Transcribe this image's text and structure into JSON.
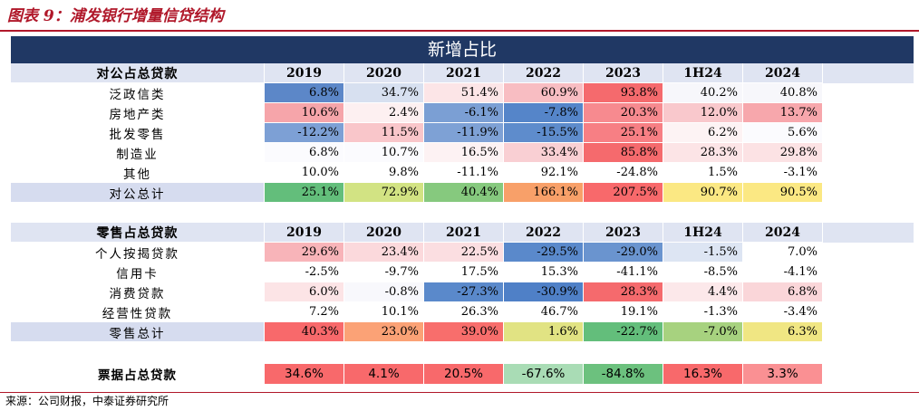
{
  "title": "图表 9：浦发银行增量信贷结构",
  "banner": "新增占比",
  "years": [
    "2019",
    "2020",
    "2021",
    "2022",
    "2023",
    "1H24",
    "2024"
  ],
  "corporate": {
    "header": "对公占总贷款",
    "rows": [
      {
        "label": "泛政信类",
        "values": [
          "6.8%",
          "34.7%",
          "51.4%",
          "60.9%",
          "93.8%",
          "40.2%",
          "40.8%"
        ],
        "colors": [
          "#5c87c8",
          "#d7e0f0",
          "#fce5e7",
          "#f8bdc2",
          "#f56a6d",
          "#f7f7fb",
          "#f7f7fb"
        ]
      },
      {
        "label": "房地产类",
        "values": [
          "10.6%",
          "2.4%",
          "-6.1%",
          "-7.8%",
          "20.3%",
          "12.0%",
          "13.7%"
        ],
        "colors": [
          "#f6a5aa",
          "#fdf0f1",
          "#7b9fd4",
          "#5585c9",
          "#f78a8f",
          "#f9c8cc",
          "#f7a7ac"
        ]
      },
      {
        "label": "批发零售",
        "values": [
          "-12.2%",
          "11.5%",
          "-11.9%",
          "-15.5%",
          "25.1%",
          "6.2%",
          "5.6%"
        ],
        "colors": [
          "#7da0d5",
          "#f9c6ca",
          "#7ea1d5",
          "#5e8ccc",
          "#f77f84",
          "#fdf3f4",
          "#fbfbfe"
        ]
      },
      {
        "label": "制造业",
        "values": [
          "6.8%",
          "10.7%",
          "16.5%",
          "33.4%",
          "85.8%",
          "28.3%",
          "29.8%"
        ],
        "colors": [
          "#fbfbfe",
          "#fbfbfe",
          "#fdf2f3",
          "#f9cfd3",
          "#f56a6d",
          "#fce4e6",
          "#fce2e4"
        ]
      },
      {
        "label": "其他",
        "values": [
          "10.0%",
          "9.8%",
          "-11.1%",
          "92.1%",
          "-24.8%",
          "1.5%",
          "-3.1%"
        ],
        "colors": [
          "#ffffff",
          "#ffffff",
          "#ffffff",
          "#ffffff",
          "#ffffff",
          "#ffffff",
          "#ffffff"
        ]
      }
    ],
    "total": {
      "label": "对公总计",
      "values": [
        "25.1%",
        "72.9%",
        "40.4%",
        "166.1%",
        "207.5%",
        "90.7%",
        "90.5%"
      ],
      "colors": [
        "#63be7b",
        "#d2e383",
        "#86c97e",
        "#f8a069",
        "#f8696b",
        "#fbe883",
        "#fbe883"
      ]
    }
  },
  "retail": {
    "header": "零售占总贷款",
    "rows": [
      {
        "label": "个人按揭贷款",
        "values": [
          "29.6%",
          "23.4%",
          "22.5%",
          "-29.5%",
          "-29.0%",
          "-1.5%",
          "7.0%"
        ],
        "colors": [
          "#f8b4b9",
          "#fbd9dc",
          "#fbdee1",
          "#5a89cb",
          "#6a94cf",
          "#dde5f3",
          "#ffffff"
        ]
      },
      {
        "label": "信用卡",
        "values": [
          "-2.5%",
          "-9.7%",
          "17.5%",
          "15.3%",
          "-41.1%",
          "-8.5%",
          "-4.1%"
        ],
        "colors": [
          "#ffffff",
          "#ffffff",
          "#ffffff",
          "#ffffff",
          "#ffffff",
          "#ffffff",
          "#ffffff"
        ]
      },
      {
        "label": "消费贷款",
        "values": [
          "6.0%",
          "-0.8%",
          "-27.3%",
          "-30.9%",
          "28.3%",
          "4.4%",
          "6.8%"
        ],
        "colors": [
          "#fce4e6",
          "#f8f8fc",
          "#5a89cb",
          "#4f80c7",
          "#f56a6d",
          "#fce8ea",
          "#fad6d9"
        ]
      },
      {
        "label": "经营性贷款",
        "values": [
          "7.2%",
          "10.1%",
          "26.3%",
          "46.7%",
          "19.1%",
          "-1.3%",
          "-3.4%"
        ],
        "colors": [
          "#ffffff",
          "#ffffff",
          "#ffffff",
          "#ffffff",
          "#ffffff",
          "#ffffff",
          "#ffffff"
        ]
      }
    ],
    "total": {
      "label": "零售总计",
      "values": [
        "40.3%",
        "23.0%",
        "39.0%",
        "1.6%",
        "-22.7%",
        "-7.0%",
        "6.3%"
      ],
      "colors": [
        "#f8696b",
        "#fba276",
        "#f86e6c",
        "#e1e383",
        "#63be7b",
        "#a7d27f",
        "#f0e683"
      ]
    }
  },
  "bill": {
    "label": "票据占总贷款",
    "values": [
      "34.6%",
      "4.1%",
      "20.5%",
      "-67.6%",
      "-84.8%",
      "16.3%",
      "3.3%"
    ],
    "colors": [
      "#f8696b",
      "#f8696b",
      "#f8696b",
      "#a9dcb5",
      "#6cc17e",
      "#f8696b",
      "#fa9093"
    ]
  },
  "source": "来源：公司财报，中泰证券研究所"
}
